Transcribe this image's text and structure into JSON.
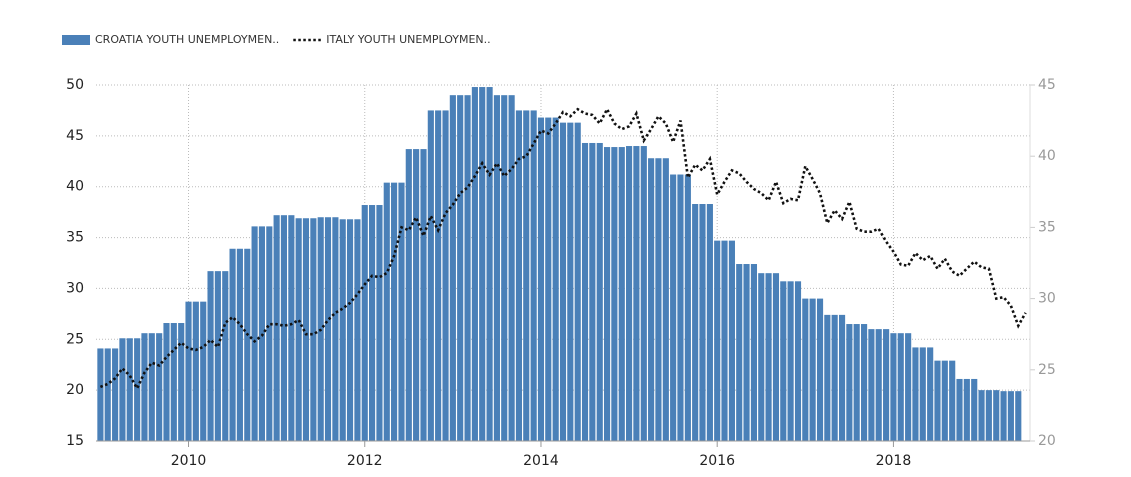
{
  "chart_data": {
    "type": "bar-line",
    "legend": "top-left",
    "grid": true,
    "xlim": [
      2008.95,
      2019.55
    ],
    "xticks": [
      2010,
      2012,
      2014,
      2016,
      2018
    ],
    "ylim": [
      15,
      50
    ],
    "yticks": [
      15,
      20,
      25,
      30,
      35,
      40,
      45,
      50
    ],
    "y2lim": [
      20,
      45
    ],
    "y2ticks": [
      20,
      25,
      30,
      35,
      40,
      45
    ],
    "x": [
      2009,
      2009.083,
      2009.167,
      2009.25,
      2009.333,
      2009.417,
      2009.5,
      2009.583,
      2009.667,
      2009.75,
      2009.833,
      2009.917,
      2010,
      2010.083,
      2010.167,
      2010.25,
      2010.333,
      2010.417,
      2010.5,
      2010.583,
      2010.667,
      2010.75,
      2010.833,
      2010.917,
      2011,
      2011.083,
      2011.167,
      2011.25,
      2011.333,
      2011.417,
      2011.5,
      2011.583,
      2011.667,
      2011.75,
      2011.833,
      2011.917,
      2012,
      2012.083,
      2012.167,
      2012.25,
      2012.333,
      2012.417,
      2012.5,
      2012.583,
      2012.667,
      2012.75,
      2012.833,
      2012.917,
      2013,
      2013.083,
      2013.167,
      2013.25,
      2013.333,
      2013.417,
      2013.5,
      2013.583,
      2013.667,
      2013.75,
      2013.833,
      2013.917,
      2014,
      2014.083,
      2014.167,
      2014.25,
      2014.333,
      2014.417,
      2014.5,
      2014.583,
      2014.667,
      2014.75,
      2014.833,
      2014.917,
      2015,
      2015.083,
      2015.167,
      2015.25,
      2015.333,
      2015.417,
      2015.5,
      2015.583,
      2015.667,
      2015.75,
      2015.833,
      2015.917,
      2016,
      2016.083,
      2016.167,
      2016.25,
      2016.333,
      2016.417,
      2016.5,
      2016.583,
      2016.667,
      2016.75,
      2016.833,
      2016.917,
      2017,
      2017.083,
      2017.167,
      2017.25,
      2017.333,
      2017.417,
      2017.5,
      2017.583,
      2017.667,
      2017.75,
      2017.833,
      2017.917,
      2018,
      2018.083,
      2018.167,
      2018.25,
      2018.333,
      2018.417,
      2018.5,
      2018.583,
      2018.667,
      2018.75,
      2018.833,
      2018.917,
      2019,
      2019.083,
      2019.167,
      2019.25,
      2019.333,
      2019.417,
      2019.5
    ],
    "series": [
      {
        "name": "CROATIA YOUTH UNEMPLOYMEN..",
        "kind": "bar",
        "color": "#4a80b8",
        "values": [
          24.1,
          24.1,
          24.1,
          25.1,
          25.1,
          25.1,
          25.6,
          25.6,
          25.6,
          26.6,
          26.6,
          26.6,
          28.7,
          28.7,
          28.7,
          31.7,
          31.7,
          31.7,
          33.9,
          33.9,
          33.9,
          36.1,
          36.1,
          36.1,
          37.2,
          37.2,
          37.2,
          36.9,
          36.9,
          36.9,
          37.0,
          37.0,
          37.0,
          36.8,
          36.8,
          36.8,
          38.2,
          38.2,
          38.2,
          40.4,
          40.4,
          40.4,
          43.7,
          43.7,
          43.7,
          47.5,
          47.5,
          47.5,
          49.0,
          49.0,
          49.0,
          49.8,
          49.8,
          49.8,
          49.0,
          49.0,
          49.0,
          47.5,
          47.5,
          47.5,
          46.8,
          46.8,
          46.8,
          46.3,
          46.3,
          46.3,
          44.3,
          44.3,
          44.3,
          43.9,
          43.9,
          43.9,
          44.0,
          44.0,
          44.0,
          42.8,
          42.8,
          42.8,
          41.2,
          41.2,
          41.2,
          38.3,
          38.3,
          38.3,
          34.7,
          34.7,
          34.7,
          32.4,
          32.4,
          32.4,
          31.5,
          31.5,
          31.5,
          30.7,
          30.7,
          30.7,
          29.0,
          29.0,
          29.0,
          27.4,
          27.4,
          27.4,
          26.5,
          26.5,
          26.5,
          26.0,
          26.0,
          26.0,
          25.6,
          25.6,
          25.6,
          24.2,
          24.2,
          24.2,
          22.9,
          22.9,
          22.9,
          21.1,
          21.1,
          21.1,
          20.0,
          20.0,
          20.0,
          19.9,
          19.9,
          19.9,
          null
        ]
      },
      {
        "name": "ITALY YOUTH UNEMPLOYMEN..",
        "kind": "line",
        "axis": "y2",
        "color": "#111111",
        "values": [
          23.8,
          24.0,
          24.4,
          25.1,
          24.6,
          23.7,
          24.8,
          25.5,
          25.3,
          25.9,
          26.4,
          26.9,
          26.5,
          26.4,
          26.6,
          27.1,
          26.6,
          28.3,
          28.7,
          28.2,
          27.5,
          27.0,
          27.4,
          28.2,
          28.2,
          28.1,
          28.2,
          28.5,
          27.5,
          27.5,
          27.8,
          28.5,
          29.0,
          29.3,
          29.7,
          30.3,
          31.0,
          31.6,
          31.5,
          31.8,
          33.0,
          35.0,
          34.8,
          35.7,
          34.4,
          35.8,
          34.8,
          36.0,
          36.6,
          37.4,
          37.8,
          38.6,
          39.5,
          38.7,
          39.5,
          38.6,
          39.1,
          39.8,
          40.0,
          40.9,
          41.8,
          41.6,
          42.3,
          43.1,
          42.8,
          43.3,
          43.0,
          42.9,
          42.3,
          43.3,
          42.3,
          41.9,
          42.1,
          43.0,
          41.1,
          41.9,
          42.8,
          42.3,
          41.0,
          42.5,
          38.5,
          39.4,
          39.0,
          39.8,
          37.3,
          38.2,
          39.0,
          38.8,
          38.2,
          37.7,
          37.4,
          36.9,
          38.2,
          36.7,
          37.0,
          36.9,
          39.3,
          38.4,
          37.4,
          35.3,
          36.2,
          35.6,
          36.8,
          34.9,
          34.7,
          34.7,
          34.9,
          34.0,
          33.3,
          32.4,
          32.3,
          33.2,
          32.7,
          33.0,
          32.1,
          32.8,
          31.9,
          31.6,
          32.1,
          32.6,
          32.2,
          32.1,
          30.0,
          30.1,
          29.5,
          28.1,
          29.0
        ]
      }
    ]
  }
}
